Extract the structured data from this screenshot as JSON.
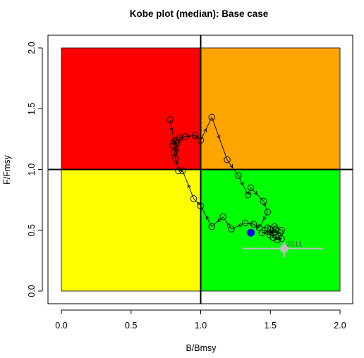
{
  "chart_data": {
    "type": "scatter",
    "title": "Kobe plot (median): Base case",
    "xlabel": "B/Bmsy",
    "ylabel": "F/Fmsy",
    "xlim": [
      0,
      2
    ],
    "ylim": [
      0,
      2
    ],
    "x_ticks": [
      "0.0",
      "0.5",
      "1.0",
      "1.5",
      "2.0"
    ],
    "y_ticks": [
      "0.0",
      "0.5",
      "1.0",
      "1.5",
      "2.0"
    ],
    "reference_lines": {
      "x": 1.0,
      "y": 1.0
    },
    "grid": false,
    "legend": "none",
    "quadrants": [
      {
        "x": [
          0,
          1
        ],
        "y": [
          1,
          2
        ],
        "color": "#ff0000"
      },
      {
        "x": [
          1,
          2
        ],
        "y": [
          1,
          2
        ],
        "color": "#ffa500"
      },
      {
        "x": [
          0,
          1
        ],
        "y": [
          0,
          1
        ],
        "color": "#ffff00"
      },
      {
        "x": [
          1,
          2
        ],
        "y": [
          0,
          1
        ],
        "color": "#00ff00"
      }
    ],
    "trajectory": {
      "color": "#000000",
      "points": [
        [
          0.78,
          1.41
        ],
        [
          0.81,
          1.23
        ],
        [
          0.8,
          1.2
        ],
        [
          0.82,
          1.24
        ],
        [
          0.82,
          1.09
        ],
        [
          0.85,
          1.26
        ],
        [
          0.89,
          1.27
        ],
        [
          0.96,
          1.28
        ],
        [
          1.0,
          1.24
        ],
        [
          1.08,
          1.43
        ],
        [
          1.19,
          1.08
        ],
        [
          1.27,
          0.95
        ],
        [
          1.34,
          0.79
        ],
        [
          1.36,
          0.85
        ],
        [
          1.45,
          0.74
        ],
        [
          1.48,
          0.65
        ],
        [
          1.42,
          0.52
        ],
        [
          1.38,
          0.55
        ],
        [
          1.32,
          0.56
        ],
        [
          1.22,
          0.51
        ],
        [
          1.16,
          0.61
        ],
        [
          1.08,
          0.53
        ],
        [
          1.0,
          0.7
        ],
        [
          0.95,
          0.76
        ],
        [
          0.87,
          0.99
        ],
        [
          0.84,
          0.99
        ],
        [
          0.81,
          1.14
        ],
        [
          0.83,
          1.22
        ]
      ],
      "cluster_points": [
        [
          1.48,
          0.52
        ],
        [
          1.52,
          0.48
        ],
        [
          1.54,
          0.51
        ],
        [
          1.56,
          0.45
        ],
        [
          1.58,
          0.43
        ],
        [
          1.52,
          0.44
        ],
        [
          1.5,
          0.51
        ],
        [
          1.55,
          0.42
        ],
        [
          1.46,
          0.5
        ],
        [
          1.57,
          0.48
        ],
        [
          1.44,
          0.48
        ],
        [
          1.5,
          0.46
        ],
        [
          1.53,
          0.53
        ],
        [
          1.58,
          0.5
        ]
      ]
    },
    "highlight_point": {
      "x": 1.36,
      "y": 0.48,
      "color": "#0000ff"
    },
    "terminal_estimate": {
      "x": 1.6,
      "y": 0.35,
      "x_range": [
        1.3,
        1.88
      ],
      "y_range": [
        0.28,
        0.4
      ],
      "color": "#bebebe",
      "label": "2011"
    }
  }
}
